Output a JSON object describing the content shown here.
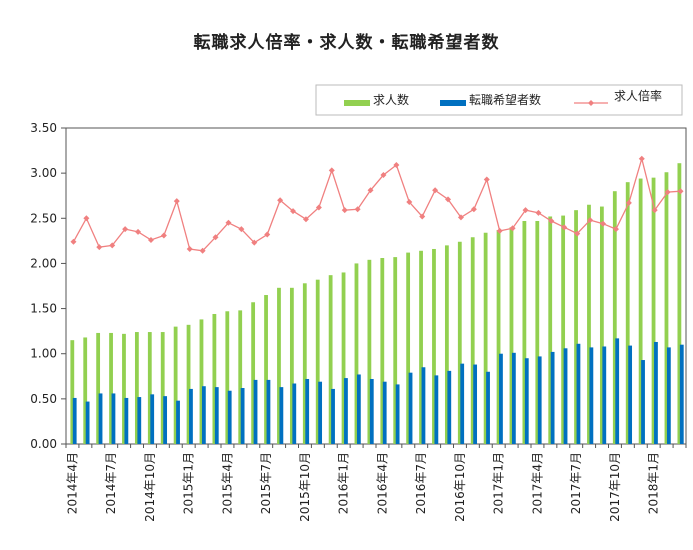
{
  "chart_data": {
    "type": "bar",
    "title": "転職求人倍率・求人数・転職希望者数",
    "legend_position": "top-right",
    "grid": false,
    "ylim": [
      0,
      3.5
    ],
    "yticks": [
      "0.00",
      "0.50",
      "1.00",
      "1.50",
      "2.00",
      "2.50",
      "3.00",
      "3.50"
    ],
    "x": [
      "2014年4月",
      "2014年5月",
      "2014年6月",
      "2014年7月",
      "2014年8月",
      "2014年9月",
      "2014年10月",
      "2014年11月",
      "2014年12月",
      "2015年1月",
      "2015年2月",
      "2015年3月",
      "2015年4月",
      "2015年5月",
      "2015年6月",
      "2015年7月",
      "2015年8月",
      "2015年9月",
      "2015年10月",
      "2015年11月",
      "2015年12月",
      "2016年1月",
      "2016年2月",
      "2016年3月",
      "2016年4月",
      "2016年5月",
      "2016年6月",
      "2016年7月",
      "2016年8月",
      "2016年9月",
      "2016年10月",
      "2016年11月",
      "2016年12月",
      "2017年1月",
      "2017年2月",
      "2017年3月",
      "2017年4月",
      "2017年5月",
      "2017年6月",
      "2017年7月",
      "2017年8月",
      "2017年9月",
      "2017年10月",
      "2017年11月",
      "2017年12月",
      "2018年1月",
      "2018年2月",
      "2018年3月"
    ],
    "xtick_labels": [
      "2014年4月",
      "2014年7月",
      "2014年10月",
      "2015年1月",
      "2015年4月",
      "2015年7月",
      "2015年10月",
      "2016年1月",
      "2016年4月",
      "2016年7月",
      "2016年10月",
      "2017年1月",
      "2017年4月",
      "2017年7月",
      "2017年10月",
      "2018年1月"
    ],
    "series": [
      {
        "name": "求人数",
        "type": "bar",
        "color": "#92d050",
        "values": [
          1.15,
          1.18,
          1.23,
          1.23,
          1.22,
          1.24,
          1.24,
          1.24,
          1.3,
          1.32,
          1.38,
          1.44,
          1.47,
          1.48,
          1.57,
          1.65,
          1.73,
          1.73,
          1.78,
          1.82,
          1.87,
          1.9,
          2.0,
          2.04,
          2.06,
          2.07,
          2.12,
          2.14,
          2.16,
          2.2,
          2.24,
          2.29,
          2.34,
          2.37,
          2.4,
          2.47,
          2.47,
          2.52,
          2.53,
          2.59,
          2.65,
          2.63,
          2.8,
          2.9,
          2.94,
          2.95,
          3.01,
          3.11
        ]
      },
      {
        "name": "転職希望者数",
        "type": "bar",
        "color": "#0070c0",
        "values": [
          0.51,
          0.47,
          0.56,
          0.56,
          0.51,
          0.52,
          0.55,
          0.53,
          0.48,
          0.61,
          0.64,
          0.63,
          0.59,
          0.62,
          0.71,
          0.71,
          0.63,
          0.67,
          0.72,
          0.69,
          0.61,
          0.73,
          0.77,
          0.72,
          0.69,
          0.66,
          0.79,
          0.85,
          0.76,
          0.81,
          0.89,
          0.88,
          0.8,
          1.0,
          1.01,
          0.95,
          0.97,
          1.02,
          1.06,
          1.11,
          1.07,
          1.08,
          1.17,
          1.09,
          0.93,
          1.13,
          1.07,
          1.1
        ]
      },
      {
        "name": "求人倍率",
        "type": "line",
        "color": "#f08080",
        "values": [
          2.24,
          2.5,
          2.18,
          2.2,
          2.38,
          2.35,
          2.26,
          2.31,
          2.69,
          2.16,
          2.14,
          2.29,
          2.45,
          2.38,
          2.23,
          2.32,
          2.7,
          2.58,
          2.49,
          2.62,
          3.03,
          2.59,
          2.6,
          2.81,
          2.98,
          3.09,
          2.68,
          2.52,
          2.81,
          2.71,
          2.51,
          2.6,
          2.93,
          2.36,
          2.39,
          2.59,
          2.56,
          2.47,
          2.4,
          2.33,
          2.48,
          2.44,
          2.38,
          2.67,
          3.16,
          2.59,
          2.79,
          2.8
        ]
      }
    ]
  }
}
